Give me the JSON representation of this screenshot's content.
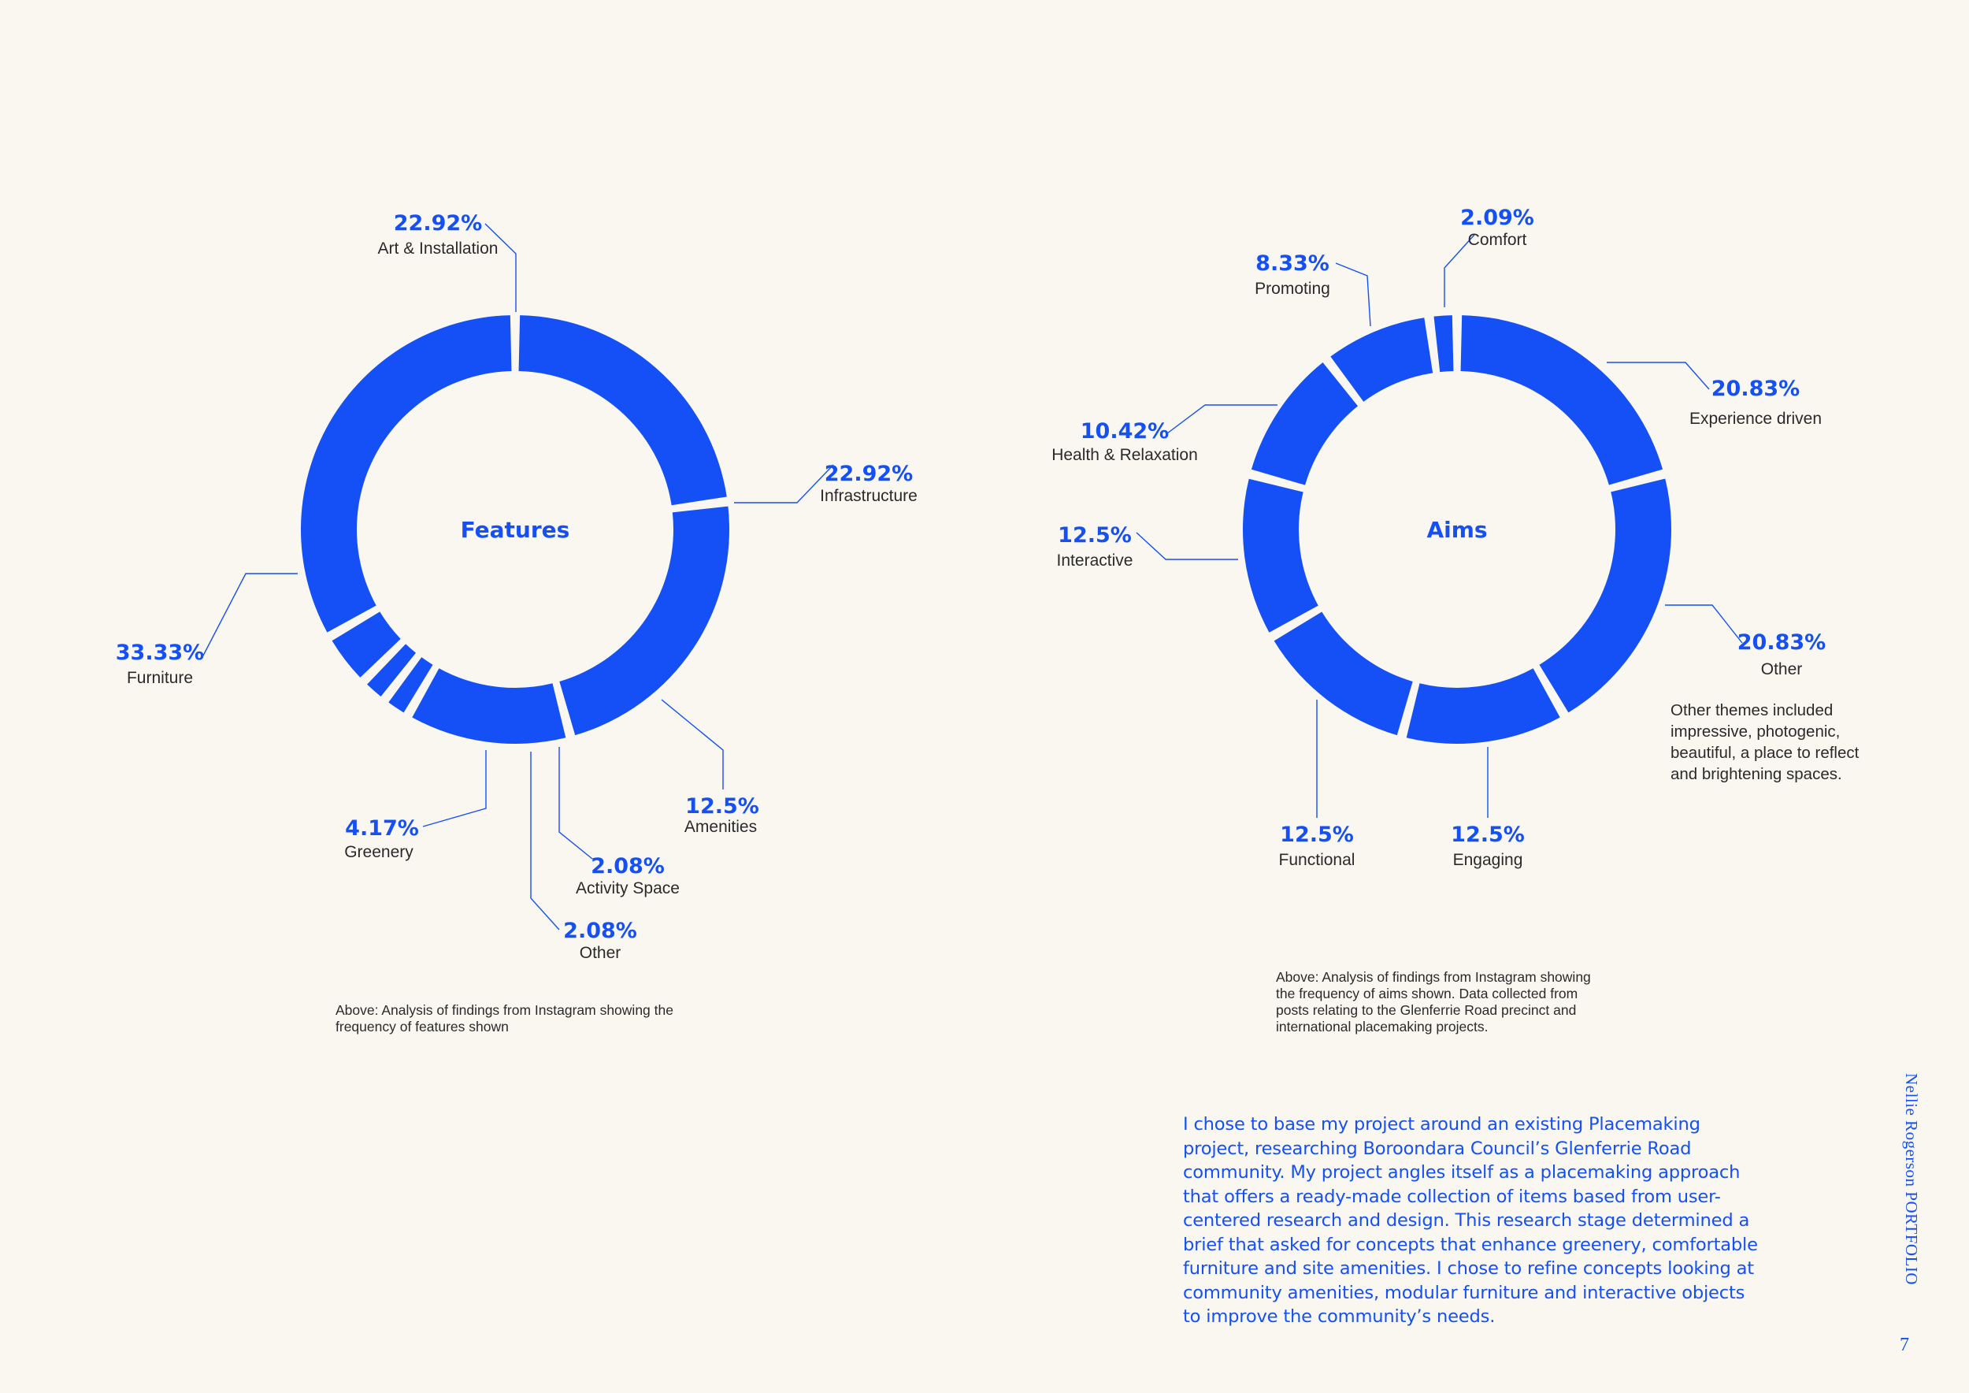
{
  "chart_data": [
    {
      "type": "pie",
      "donut": true,
      "center_label": "Features",
      "slices": [
        {
          "label": "Art & Installation",
          "value": 22.92,
          "value_label": "22.92%"
        },
        {
          "label": "Infrastructure",
          "value": 22.92,
          "value_label": "22.92%"
        },
        {
          "label": "Amenities",
          "value": 12.5,
          "value_label": "12.5%"
        },
        {
          "label": "Activity Space",
          "value": 2.08,
          "value_label": "2.08%"
        },
        {
          "label": "Other",
          "value": 2.08,
          "value_label": "2.08%"
        },
        {
          "label": "Greenery",
          "value": 4.17,
          "value_label": "4.17%"
        },
        {
          "label": "Furniture",
          "value": 33.33,
          "value_label": "33.33%"
        }
      ],
      "color": "#1450f5",
      "caption": [
        "Above: Analysis of findings from Instagram showing the",
        "frequency of features shown"
      ]
    },
    {
      "type": "pie",
      "donut": true,
      "center_label": "Aims",
      "slices": [
        {
          "label": "Experience driven",
          "value": 20.83,
          "value_label": "20.83%"
        },
        {
          "label": "Other",
          "value": 20.83,
          "value_label": "20.83%"
        },
        {
          "label": "Engaging",
          "value": 12.5,
          "value_label": "12.5%"
        },
        {
          "label": "Functional",
          "value": 12.5,
          "value_label": "12.5%"
        },
        {
          "label": "Interactive",
          "value": 12.5,
          "value_label": "12.5%"
        },
        {
          "label": "Health & Relaxation",
          "value": 10.42,
          "value_label": "10.42%"
        },
        {
          "label": "Promoting",
          "value": 8.33,
          "value_label": "8.33%"
        },
        {
          "label": "Comfort",
          "value": 2.09,
          "value_label": "2.09%"
        }
      ],
      "color": "#1450f5",
      "note": [
        "Other themes included",
        "impressive, photogenic,",
        "beautiful, a place to reflect",
        "and brightening spaces."
      ],
      "caption": [
        "Above: Analysis of findings from Instagram showing",
        "the frequency of aims shown. Data collected from",
        "posts relating to the Glenferrie Road precinct and",
        "international placemaking projects."
      ]
    }
  ],
  "body_text": "I chose to base my project around an existing Placemaking project, researching Boroondara Council’s Glenferrie Road community. My project angles itself as a placemaking approach that offers a ready-made collection of items based from user-centered research and design. This research stage determined a brief that asked for concepts that enhance greenery, comfortable furniture and site amenities. I chose to refine concepts looking at community amenities, modular furniture and interactive objects to improve the community’s needs.",
  "sidebar_label": "Nellie Rogerson PORTFOLIO",
  "page_number": "7"
}
